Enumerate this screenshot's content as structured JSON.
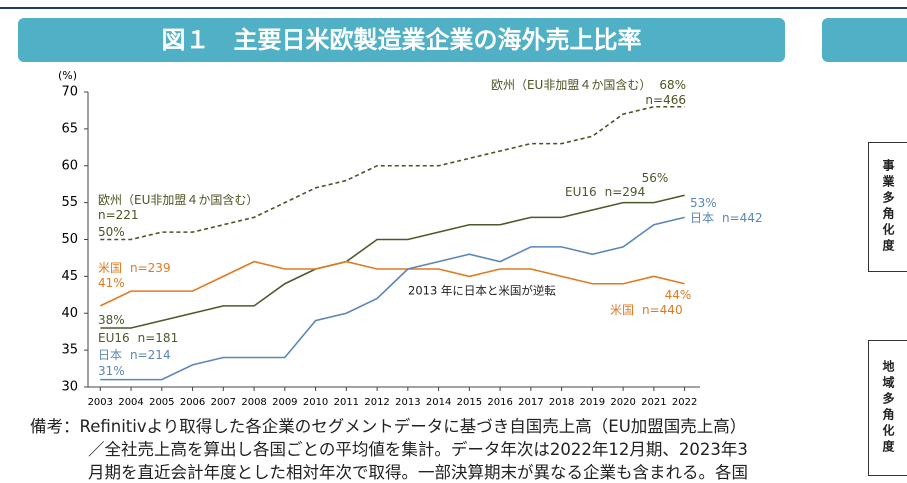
{
  "chart_data": {
    "type": "line",
    "title": "図１　主要日米欧製造業企業の海外売上比率",
    "y_label": "(%)",
    "annotation": "2013 年に日本と米国が逆転",
    "x": [
      2003,
      2004,
      2005,
      2006,
      2007,
      2008,
      2009,
      2010,
      2011,
      2012,
      2013,
      2014,
      2015,
      2016,
      2017,
      2018,
      2019,
      2020,
      2021,
      2022
    ],
    "xlim": [
      2002.6,
      2022.5
    ],
    "ylim": [
      30,
      70
    ],
    "yticks": [
      30,
      35,
      40,
      45,
      50,
      55,
      60,
      65,
      70
    ],
    "series": [
      {
        "name": "欧州（EU非加盟４か国含む）",
        "color": "#4f5223",
        "dash": true,
        "values": [
          50,
          50,
          51,
          51,
          52,
          53,
          55,
          57,
          58,
          60,
          60,
          60,
          61,
          62,
          63,
          63,
          64,
          67,
          68,
          68
        ],
        "value_labels": [
          "50%",
          null,
          null,
          null,
          null,
          null,
          null,
          null,
          null,
          null,
          null,
          null,
          null,
          null,
          null,
          null,
          null,
          null,
          null,
          "68%"
        ],
        "n_labels": [
          "n=221",
          "n=466"
        ]
      },
      {
        "name": "EU16",
        "color": "#4a5a2c",
        "dash": false,
        "values": [
          38,
          38,
          39,
          40,
          41,
          41,
          44,
          46,
          47,
          50,
          50,
          51,
          52,
          52,
          53,
          53,
          54,
          55,
          55,
          56
        ],
        "value_labels": [
          "38%",
          null,
          null,
          null,
          null,
          null,
          null,
          null,
          null,
          null,
          null,
          null,
          null,
          null,
          null,
          null,
          null,
          null,
          null,
          "56%"
        ],
        "n_labels": [
          "n=181",
          "n=294"
        ]
      },
      {
        "name": "米国",
        "color": "#e07a22",
        "dash": false,
        "values": [
          41,
          43,
          43,
          43,
          45,
          47,
          46,
          46,
          47,
          46,
          46,
          46,
          45,
          46,
          46,
          45,
          44,
          44,
          45,
          44
        ],
        "value_labels": [
          "41%",
          null,
          null,
          null,
          null,
          null,
          null,
          null,
          null,
          null,
          null,
          null,
          null,
          null,
          null,
          null,
          null,
          null,
          null,
          "44%"
        ],
        "n_labels": [
          "n=239",
          "n=440"
        ]
      },
      {
        "name": "日本",
        "color": "#5b87b6",
        "dash": false,
        "values": [
          31,
          31,
          31,
          33,
          34,
          34,
          34,
          39,
          40,
          42,
          46,
          47,
          48,
          47,
          49,
          49,
          48,
          49,
          52,
          53
        ],
        "value_labels": [
          "31%",
          null,
          null,
          null,
          null,
          null,
          null,
          null,
          null,
          null,
          null,
          null,
          null,
          null,
          null,
          null,
          null,
          null,
          null,
          "53%"
        ],
        "n_labels": [
          "n=214",
          "n=442"
        ]
      }
    ]
  },
  "note": [
    "備考：Refinitivより取得した各企業のセグメントデータに基づき自国売上高（EU加盟国売上高）",
    "／全社売上高を算出し各国ごとの平均値を集計。データ年次は2022年12月期、2023年3",
    "月期を直近会計年度とした相対年次で取得。一部決算期末が異なる企業も含まれる。各国"
  ],
  "sidebar": [
    "事業多角化度",
    "地域多角化度"
  ]
}
